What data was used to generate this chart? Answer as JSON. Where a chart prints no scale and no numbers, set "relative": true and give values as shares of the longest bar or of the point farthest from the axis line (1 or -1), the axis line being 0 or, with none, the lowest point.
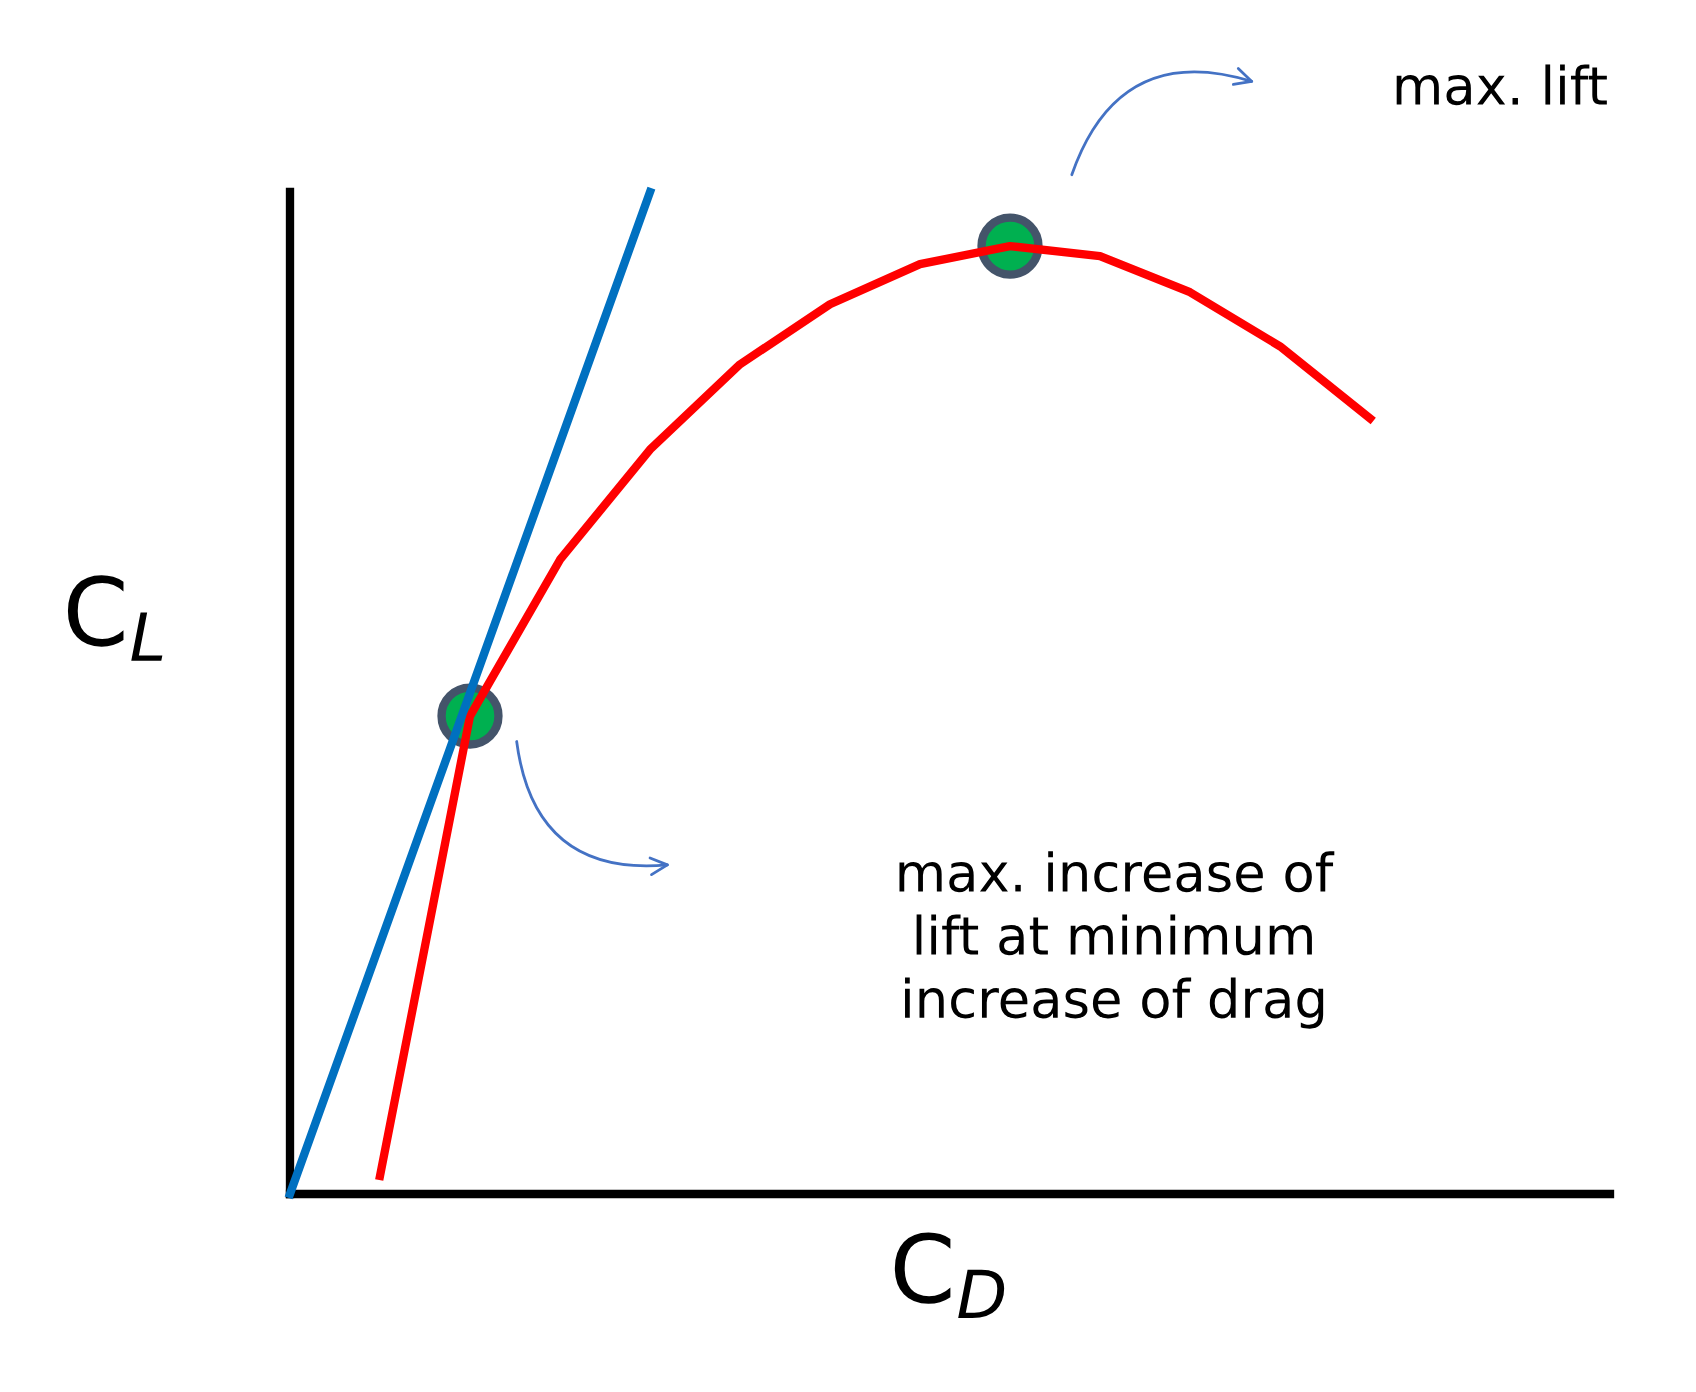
{
  "chart_data": {
    "type": "line",
    "relative": true,
    "xlabel": "C$_{D}$",
    "ylabel": "C$_{L}$",
    "line_style": "solid",
    "categories": [
      null,
      null,
      null,
      null,
      null,
      null,
      null,
      null,
      null,
      null,
      null,
      null,
      null
    ],
    "series": [
      {
        "color": "#ff0000",
        "values": [
          null,
          0.018,
          0.477,
          0.633,
          0.743,
          0.828,
          0.888,
          0.928,
          0.946,
          0.936,
          0.9,
          0.846,
          0.774
        ]
      },
      {
        "color": "#0070c0",
        "values": [
          0,
          0.25,
          0.5,
          0.75,
          1.0,
          null,
          null,
          null,
          null,
          null,
          null,
          null,
          null
        ]
      }
    ],
    "annotations": [
      "max. increase of\nlift at minimum\nincrease of drag",
      "max. lift"
    ]
  }
}
